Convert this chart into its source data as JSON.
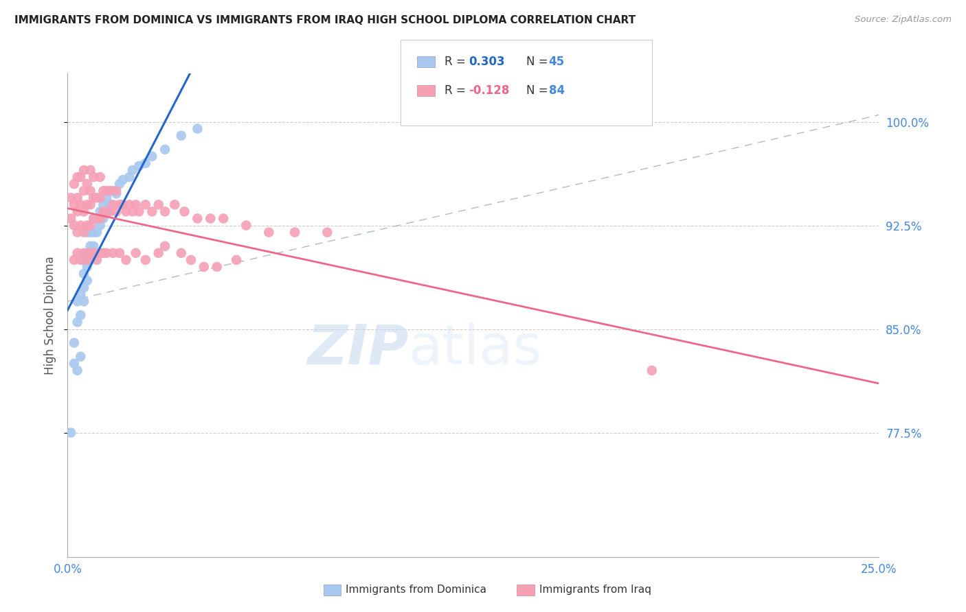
{
  "title": "IMMIGRANTS FROM DOMINICA VS IMMIGRANTS FROM IRAQ HIGH SCHOOL DIPLOMA CORRELATION CHART",
  "source": "Source: ZipAtlas.com",
  "ylabel": "High School Diploma",
  "yticks": [
    "77.5%",
    "85.0%",
    "92.5%",
    "100.0%"
  ],
  "ytick_vals": [
    0.775,
    0.85,
    0.925,
    1.0
  ],
  "xmin": 0.0,
  "xmax": 0.25,
  "ymin": 0.685,
  "ymax": 1.035,
  "color_dominica": "#a8c8f0",
  "color_iraq": "#f5a0b5",
  "color_line_dominica": "#2266cc",
  "color_line_iraq": "#ee6688",
  "color_dashed": "#99aabb",
  "color_ticks": "#4488dd",
  "watermark_zip": "ZIP",
  "watermark_atlas": "atlas",
  "dominica_x": [
    0.001,
    0.002,
    0.002,
    0.003,
    0.003,
    0.003,
    0.004,
    0.004,
    0.004,
    0.005,
    0.005,
    0.005,
    0.005,
    0.006,
    0.006,
    0.006,
    0.006,
    0.007,
    0.007,
    0.007,
    0.007,
    0.008,
    0.008,
    0.008,
    0.009,
    0.009,
    0.01,
    0.01,
    0.011,
    0.011,
    0.012,
    0.012,
    0.013,
    0.014,
    0.015,
    0.016,
    0.017,
    0.019,
    0.02,
    0.022,
    0.024,
    0.026,
    0.03,
    0.035,
    0.04
  ],
  "dominica_y": [
    0.775,
    0.825,
    0.84,
    0.82,
    0.855,
    0.87,
    0.83,
    0.86,
    0.875,
    0.87,
    0.88,
    0.89,
    0.9,
    0.885,
    0.895,
    0.905,
    0.92,
    0.9,
    0.91,
    0.92,
    0.925,
    0.91,
    0.92,
    0.93,
    0.92,
    0.93,
    0.925,
    0.935,
    0.93,
    0.94,
    0.935,
    0.945,
    0.94,
    0.95,
    0.948,
    0.955,
    0.958,
    0.96,
    0.965,
    0.968,
    0.97,
    0.975,
    0.98,
    0.99,
    0.995
  ],
  "iraq_x": [
    0.001,
    0.001,
    0.002,
    0.002,
    0.002,
    0.003,
    0.003,
    0.003,
    0.003,
    0.004,
    0.004,
    0.004,
    0.005,
    0.005,
    0.005,
    0.005,
    0.006,
    0.006,
    0.006,
    0.007,
    0.007,
    0.007,
    0.007,
    0.008,
    0.008,
    0.008,
    0.009,
    0.009,
    0.01,
    0.01,
    0.01,
    0.011,
    0.011,
    0.012,
    0.012,
    0.013,
    0.013,
    0.014,
    0.015,
    0.015,
    0.016,
    0.017,
    0.018,
    0.019,
    0.02,
    0.021,
    0.022,
    0.024,
    0.026,
    0.028,
    0.03,
    0.033,
    0.036,
    0.04,
    0.044,
    0.048,
    0.055,
    0.062,
    0.07,
    0.08,
    0.002,
    0.003,
    0.004,
    0.005,
    0.006,
    0.007,
    0.008,
    0.009,
    0.01,
    0.011,
    0.012,
    0.014,
    0.016,
    0.018,
    0.021,
    0.024,
    0.028,
    0.03,
    0.035,
    0.038,
    0.18,
    0.042,
    0.046,
    0.052
  ],
  "iraq_y": [
    0.93,
    0.945,
    0.925,
    0.94,
    0.955,
    0.92,
    0.935,
    0.945,
    0.96,
    0.925,
    0.94,
    0.96,
    0.92,
    0.935,
    0.95,
    0.965,
    0.925,
    0.94,
    0.955,
    0.925,
    0.94,
    0.95,
    0.965,
    0.93,
    0.945,
    0.96,
    0.93,
    0.945,
    0.93,
    0.945,
    0.96,
    0.935,
    0.95,
    0.935,
    0.95,
    0.935,
    0.95,
    0.94,
    0.935,
    0.95,
    0.94,
    0.94,
    0.935,
    0.94,
    0.935,
    0.94,
    0.935,
    0.94,
    0.935,
    0.94,
    0.935,
    0.94,
    0.935,
    0.93,
    0.93,
    0.93,
    0.925,
    0.92,
    0.92,
    0.92,
    0.9,
    0.905,
    0.9,
    0.905,
    0.9,
    0.905,
    0.905,
    0.9,
    0.905,
    0.905,
    0.905,
    0.905,
    0.905,
    0.9,
    0.905,
    0.9,
    0.905,
    0.91,
    0.905,
    0.9,
    0.82,
    0.895,
    0.895,
    0.9
  ]
}
